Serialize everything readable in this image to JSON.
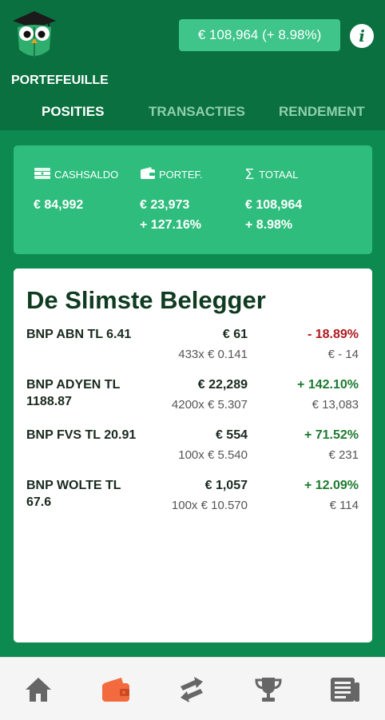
{
  "header": {
    "portfolio_value": "€ 108,964 (+ 8.98%)",
    "page_title": "PORTEFEUILLE"
  },
  "tabs": [
    {
      "label": "POSITIES",
      "active": true
    },
    {
      "label": "TRANSACTIES",
      "active": false
    },
    {
      "label": "RENDEMENT",
      "active": false
    }
  ],
  "summary": {
    "cash": {
      "label": "CASHSALDO",
      "value": "€ 84,992"
    },
    "portfolio": {
      "label": "PORTEF.",
      "value": "€ 23,973",
      "change": "+ 127.16%"
    },
    "total": {
      "label": "TOTAAL",
      "value": "€ 108,964",
      "change": "+ 8.98%"
    }
  },
  "positions_card": {
    "title": "De Slimste Belegger",
    "rows": [
      {
        "name": "BNP ABN TL 6.41",
        "value": "€ 61",
        "qty": "433x € 0.141",
        "pct": "- 18.89%",
        "abs": "€ - 14",
        "trend": "neg"
      },
      {
        "name": "BNP ADYEN TL 1188.87",
        "value": "€ 22,289",
        "qty": "4200x € 5.307",
        "pct": "+ 142.10%",
        "abs": "€ 13,083",
        "trend": "pos"
      },
      {
        "name": "BNP FVS TL 20.91",
        "value": "€ 554",
        "qty": "100x € 5.540",
        "pct": "+ 71.52%",
        "abs": "€ 231",
        "trend": "pos"
      },
      {
        "name": "BNP WOLTE TL 67.6",
        "value": "€ 1,057",
        "qty": "100x € 10.570",
        "pct": "+ 12.09%",
        "abs": "€ 114",
        "trend": "pos"
      }
    ]
  },
  "bottom_nav": [
    {
      "icon": "home-icon",
      "active": false
    },
    {
      "icon": "wallet-icon",
      "active": true
    },
    {
      "icon": "trade-arrows-icon",
      "active": false
    },
    {
      "icon": "trophy-icon",
      "active": false
    },
    {
      "icon": "news-icon",
      "active": false
    }
  ],
  "colors": {
    "header_bg": "#0a7040",
    "body_bg": "#0d8a4f",
    "accent": "#2ebd7d",
    "negative": "#b0191e",
    "positive": "#1d7a2f",
    "nav_active": "#f26a3d"
  }
}
